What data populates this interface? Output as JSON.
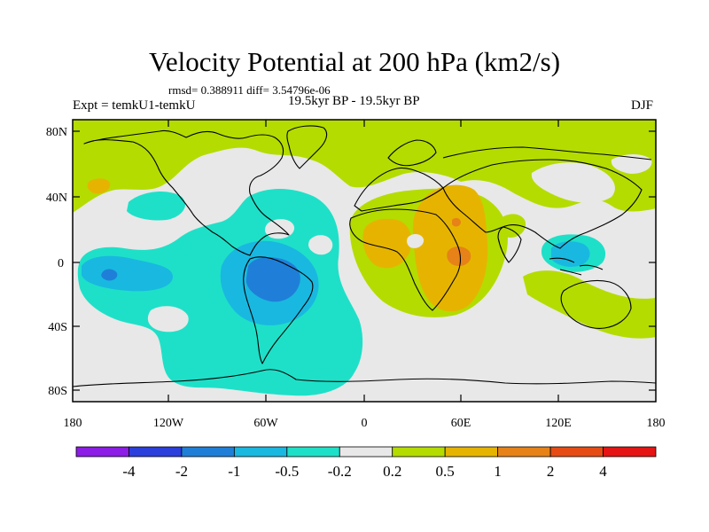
{
  "title": "Velocity Potential at 200 hPa (km2/s)",
  "stats": "rmsd= 0.388911 diff= 3.54796e-06",
  "left_label": "Expt = temkU1-temkU",
  "center_label": "19.5kyr BP - 19.5kyr BP",
  "right_label": "DJF",
  "lat_labels": [
    "80N",
    "40N",
    "0",
    "40S",
    "80S"
  ],
  "lon_labels": [
    "180",
    "120W",
    "60W",
    "0",
    "60E",
    "120E",
    "180"
  ],
  "colorbar": {
    "colors": [
      "#8c1ce6",
      "#2b3fdc",
      "#1f7fd8",
      "#19b8e0",
      "#1ee0c8",
      "#e8e8e8",
      "#b4dc00",
      "#e6b400",
      "#e68218",
      "#e64b14",
      "#e61414"
    ],
    "labels": [
      "-4",
      "-2",
      "-1",
      "-0.5",
      "-0.2",
      "0.2",
      "0.5",
      "1",
      "2",
      "4"
    ]
  },
  "field_colors": {
    "neutral": "#e8e8e8",
    "pos_weak": "#b4dc00",
    "pos_mid": "#e6b400",
    "pos_strong": "#e68218",
    "neg_weak": "#1ee0c8",
    "neg_mid": "#19b8e0",
    "neg_strong": "#1f7fd8"
  }
}
